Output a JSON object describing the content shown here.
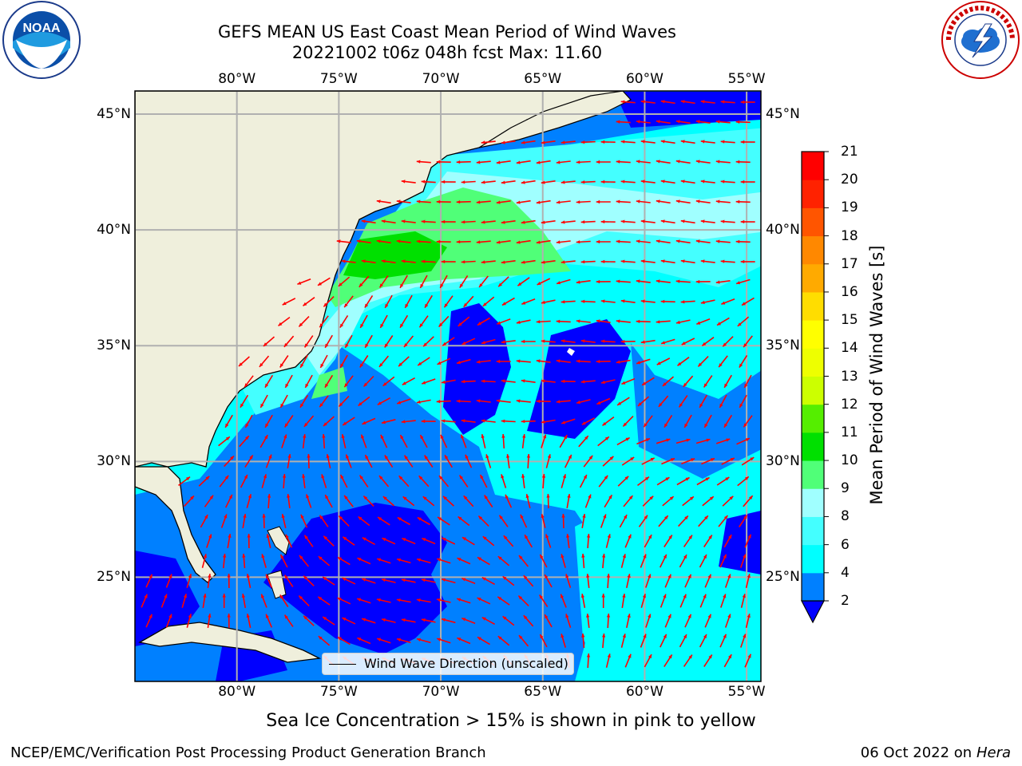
{
  "title_line1": "GEFS MEAN US East Coast Mean Period of Wind Waves",
  "title_line2": "20221002 t06z 048h fcst   Max: 11.60",
  "logos": {
    "left": {
      "icon": "noaa-logo",
      "text": "NOAA",
      "ring_text": "NATIONAL OCEANIC AND ATMOSPHERIC ADMINISTRATION · U.S. DEPARTMENT OF COMMERCE"
    },
    "right": {
      "icon": "nws-logo",
      "ring_text": "NATIONAL WEATHER SERVICE"
    }
  },
  "map": {
    "lon_ticks": [
      "80°W",
      "75°W",
      "70°W",
      "65°W",
      "60°W",
      "55°W"
    ],
    "lat_ticks": [
      "45°N",
      "40°N",
      "35°N",
      "30°N",
      "25°N"
    ],
    "lon_range": [
      -85,
      -54.3
    ],
    "lat_range": [
      20.5,
      46
    ],
    "land_color": "#efefdc",
    "arrow_color": "#ff0000"
  },
  "legend": {
    "label": "Wind Wave Direction (unscaled)"
  },
  "colorbar": {
    "label": "Mean Period of Wind Waves [s]",
    "ticks": [
      "2",
      "4",
      "6",
      "8",
      "9",
      "10",
      "11",
      "12",
      "13",
      "14",
      "15",
      "16",
      "17",
      "18",
      "19",
      "20",
      "21"
    ],
    "colors": [
      "#0000ff",
      "#0080ff",
      "#00ffff",
      "#44ffff",
      "#a0ffff",
      "#50ff78",
      "#00e000",
      "#55ee00",
      "#ccff00",
      "#eeff00",
      "#ffff00",
      "#ffdd00",
      "#ffaa00",
      "#ff8800",
      "#ff5500",
      "#ff2200",
      "#ff0000"
    ]
  },
  "note": "Sea Ice Concentration > 15% is shown in pink to yellow",
  "credit": "NCEP/EMC/Verification Post Processing Product Generation Branch",
  "date": "06 Oct 2022 on",
  "host": "Hera"
}
